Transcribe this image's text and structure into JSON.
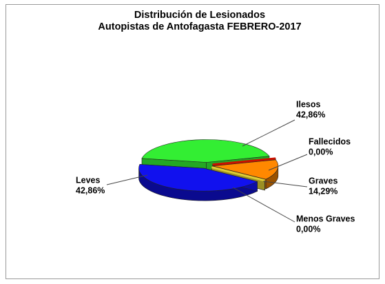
{
  "chart_data": {
    "type": "pie3d",
    "title": "Distribución de Lesionados",
    "subtitle": "Autopistas de Antofagasta FEBRERO-2017",
    "categories": [
      "Ilesos",
      "Fallecidos",
      "Graves",
      "Menos Graves",
      "Leves"
    ],
    "values": [
      42.86,
      0.0,
      14.29,
      0.0,
      42.86
    ],
    "value_labels": [
      "42,86%",
      "0,00%",
      "14,29%",
      "0,00%",
      "42,86%"
    ],
    "colors": [
      "#33ee33",
      "#cc1100",
      "#ff8800",
      "#ddcc33",
      "#1111ee"
    ]
  }
}
